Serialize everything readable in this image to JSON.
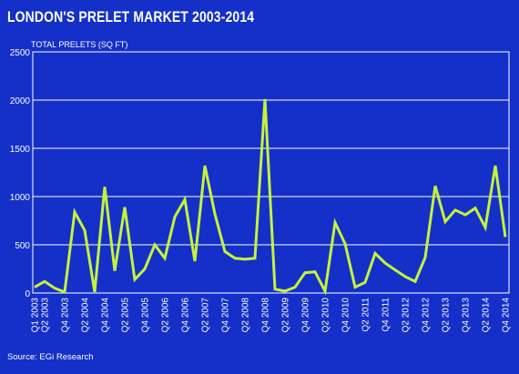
{
  "header": {
    "title": "LONDON'S PRELET MARKET 2003-2014"
  },
  "footer": {
    "source": "Source: EGi Research"
  },
  "colors": {
    "background": "#1430c8",
    "line": "#c6f23a",
    "grid": "#ffffff",
    "text": "#ffffff"
  },
  "chart_data": {
    "type": "line",
    "title": "LONDON'S PRELET MARKET 2003-2014",
    "ylabel": "TOTAL PRELETS (SQ FT)",
    "xlabel": "",
    "ylim": [
      0,
      2500
    ],
    "yticks": [
      0,
      500,
      1000,
      1500,
      2000,
      2500
    ],
    "grid": true,
    "x": [
      "Q1 2003",
      "Q2 2003",
      "Q3 2003",
      "Q4 2003",
      "Q1 2004",
      "Q2 2004",
      "Q3 2004",
      "Q4 2004",
      "Q1 2005",
      "Q2 2005",
      "Q3 2005",
      "Q4 2005",
      "Q1 2006",
      "Q2 2006",
      "Q3 2006",
      "Q4 2006",
      "Q1 2007",
      "Q2 2007",
      "Q3 2007",
      "Q4 2007",
      "Q1 2008",
      "Q2 2008",
      "Q3 2008",
      "Q4 2008",
      "Q1 2009",
      "Q2 2009",
      "Q3 2009",
      "Q4 2009",
      "Q1 2010",
      "Q2 2010",
      "Q3 2010",
      "Q4 2010",
      "Q1 2011",
      "Q2 2011",
      "Q3 2011",
      "Q4 2011",
      "Q1 2012",
      "Q2 2012",
      "Q3 2012",
      "Q4 2012",
      "Q1 2013",
      "Q2 2013",
      "Q3 2013",
      "Q4 2013",
      "Q1 2014",
      "Q2 2014",
      "Q3 2014",
      "Q4 2014"
    ],
    "xtick_labels": [
      "Q1 2003",
      "Q2 2003",
      "Q4 2003",
      "Q2 2004",
      "Q4 2004",
      "Q2 2005",
      "Q4 2005",
      "Q2 2006",
      "Q4 2006",
      "Q2 2007",
      "Q4 2007",
      "Q2 2008",
      "Q4 2008",
      "Q2 2009",
      "Q4 2009",
      "Q2 2010",
      "Q4 2010",
      "Q2 2011",
      "Q4 2011",
      "Q2 2012",
      "Q4 2012",
      "Q2 2013",
      "Q4 2013",
      "Q2 2014",
      "Q4 2014"
    ],
    "series": [
      {
        "values": [
          60,
          120,
          50,
          10,
          840,
          650,
          10,
          1100,
          230,
          890,
          140,
          250,
          500,
          360,
          790,
          970,
          330,
          1320,
          820,
          430,
          360,
          350,
          360,
          2010,
          40,
          20,
          60,
          210,
          220,
          20,
          730,
          510,
          60,
          110,
          410,
          310,
          240,
          170,
          120,
          370,
          1110,
          740,
          860,
          810,
          880,
          680,
          1320,
          580
        ]
      }
    ]
  }
}
